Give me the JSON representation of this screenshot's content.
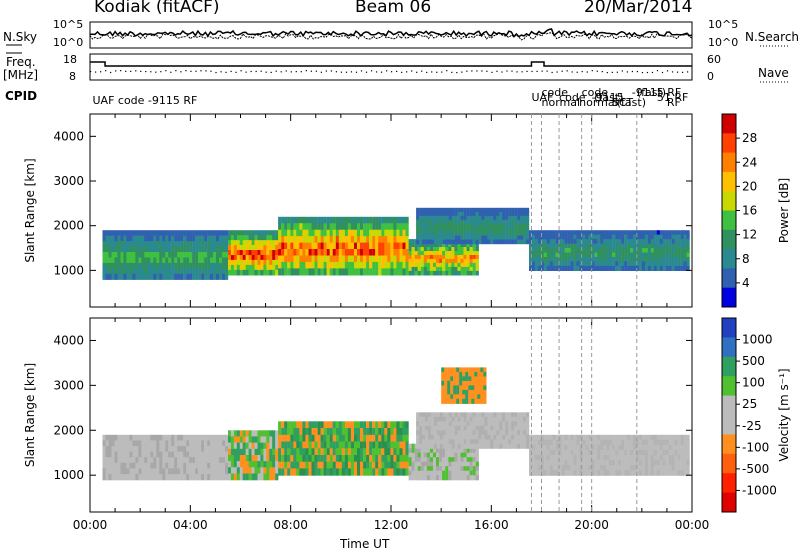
{
  "header": {
    "station": "Kodiak (fitACF)",
    "beam": "Beam 06",
    "date": "20/Mar/2014"
  },
  "left_labels": {
    "nsky": "N.Sky",
    "freq_line1": "Freq.",
    "freq_line2": "[MHz]",
    "cpid": "CPID"
  },
  "right_labels": {
    "nsearch": "N.Search",
    "nave": "Nave"
  },
  "noise_panel": {
    "left_ticks": [
      "10^5",
      "10^0"
    ],
    "right_ticks": [
      "10^5",
      "10^0"
    ]
  },
  "freq_panel": {
    "left_ticks": [
      "18",
      "8"
    ],
    "right_ticks": [
      "60",
      "0"
    ]
  },
  "cpid_panel": {
    "labels": [
      {
        "text": "UAF code -9115 RF",
        "hour": 0.1
      },
      {
        "text": "UAF",
        "hour": 17.6
      },
      {
        "text": "normal",
        "hour": 18.0
      },
      {
        "text": "code",
        "hour": 18.0
      },
      {
        "text": "code",
        "hour": 18.7
      },
      {
        "text": "normal",
        "hour": 19.5
      },
      {
        "text": "code",
        "hour": 19.6
      },
      {
        "text": "(fast)",
        "hour": 20.1
      },
      {
        "text": "(fast)",
        "hour": 21.0
      },
      {
        "text": "(fast)",
        "hour": 21.8
      },
      {
        "text": "-9115",
        "hour": 20.0
      },
      {
        "text": "SCT",
        "hour": 20.8
      },
      {
        "text": "-9115 RF",
        "hour": 21.6
      },
      {
        "text": "51 RF",
        "hour": 22.6
      },
      {
        "text": "RF",
        "hour": 23.0
      }
    ]
  },
  "chart_data": [
    {
      "type": "heatmap",
      "name": "power",
      "xlabel": "",
      "ylabel": "Slant Range [km]",
      "xlim": [
        0,
        24
      ],
      "ylim": [
        180,
        4500
      ],
      "yticks": [
        "1000",
        "2000",
        "3000",
        "4000"
      ],
      "ytick_values": [
        1000,
        2000,
        3000,
        4000
      ],
      "colorbar": {
        "label": "Power [dB]",
        "ticks": [
          "28",
          "24",
          "20",
          "16",
          "12",
          "8",
          "4"
        ],
        "colors": [
          "#d00000",
          "#ff4000",
          "#ff8000",
          "#ffc000",
          "#c8d800",
          "#40c040",
          "#309060",
          "#2a8a90",
          "#3060b0",
          "#0000e0"
        ]
      },
      "echo_regions": [
        {
          "start_h": 0.5,
          "end_h": 5.5,
          "range_min": 800,
          "range_max": 1900,
          "peak_db": 14
        },
        {
          "start_h": 5.5,
          "end_h": 7.5,
          "range_min": 900,
          "range_max": 1900,
          "peak_db": 28
        },
        {
          "start_h": 7.5,
          "end_h": 12.7,
          "range_min": 900,
          "range_max": 2200,
          "peak_db": 28
        },
        {
          "start_h": 12.7,
          "end_h": 15.5,
          "range_min": 900,
          "range_max": 1700,
          "peak_db": 24
        },
        {
          "start_h": 13.0,
          "end_h": 17.5,
          "range_min": 1600,
          "range_max": 2400,
          "peak_db": 12
        },
        {
          "start_h": 17.5,
          "end_h": 23.9,
          "range_min": 1000,
          "range_max": 1900,
          "peak_db": 12
        }
      ]
    },
    {
      "type": "heatmap",
      "name": "velocity",
      "xlabel": "Time UT",
      "ylabel": "Slant Range [km]",
      "xlim": [
        0,
        24
      ],
      "ylim": [
        180,
        4500
      ],
      "xticks": [
        "00:00",
        "04:00",
        "08:00",
        "12:00",
        "16:00",
        "20:00",
        "00:00"
      ],
      "xtick_values": [
        0,
        4,
        8,
        12,
        16,
        20,
        24
      ],
      "yticks": [
        "1000",
        "2000",
        "3000",
        "4000"
      ],
      "ytick_values": [
        1000,
        2000,
        3000,
        4000
      ],
      "colorbar": {
        "label": "Velocity [m s⁻¹]",
        "ticks": [
          "1000",
          "500",
          "100",
          "25",
          "-25",
          "-100",
          "-500",
          "-1000"
        ],
        "colors": [
          "#2040c0",
          "#3070c0",
          "#30a060",
          "#50c030",
          "#bcbcbc",
          "#bcbcbc",
          "#ff9020",
          "#ff6010",
          "#ff2000",
          "#e00000"
        ]
      }
    }
  ]
}
